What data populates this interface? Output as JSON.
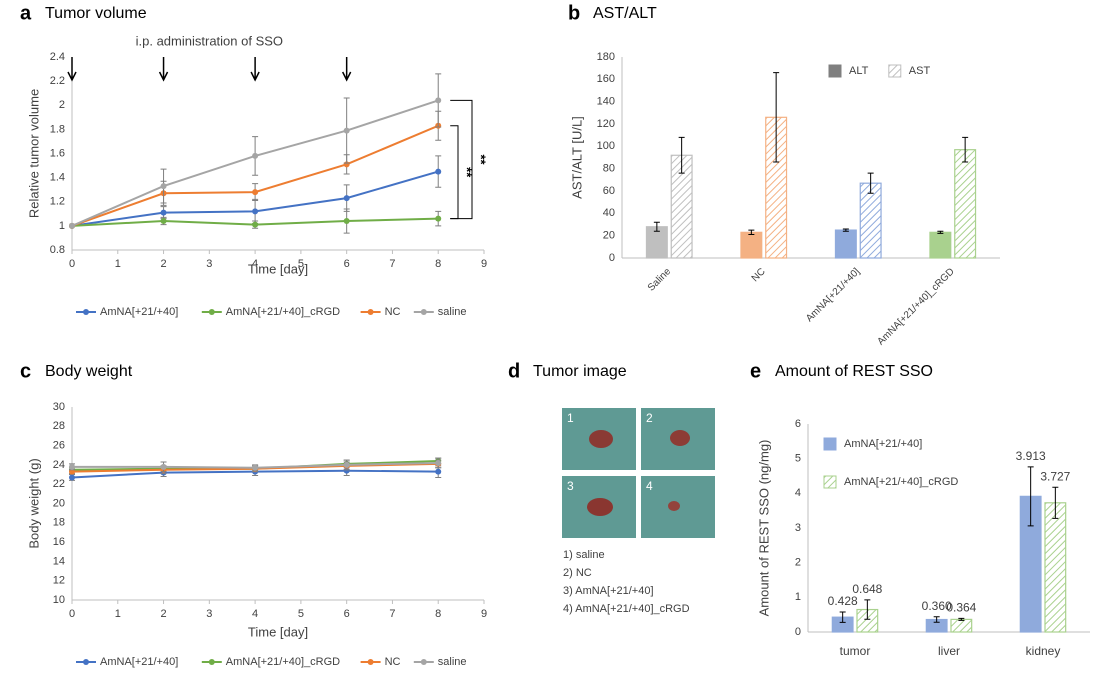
{
  "chart_data": [
    {
      "type": "line",
      "panel": "a",
      "title": "Tumor volume",
      "annotation": "i.p. administration of SSO",
      "arrows": [
        0,
        2,
        4,
        6
      ],
      "significance": [
        "**",
        "**"
      ],
      "xlabel": "Time [day]",
      "ylabel": "Relative tumor volume",
      "x": [
        0,
        2,
        4,
        6,
        8
      ],
      "xlim": [
        0,
        9
      ],
      "xticks": [
        0,
        1,
        2,
        3,
        4,
        5,
        6,
        7,
        8,
        9
      ],
      "ylim": [
        0.8,
        2.4
      ],
      "yticks": [
        0.8,
        1,
        1.2,
        1.4,
        1.6,
        1.8,
        2,
        2.2,
        2.4
      ],
      "grid": false,
      "legend": "bottom",
      "series": [
        {
          "name": "AmNA[+21/+40]",
          "color": "#4472c4",
          "values": [
            1,
            1.11,
            1.12,
            1.23,
            1.45
          ],
          "errors": [
            0,
            0.05,
            0.1,
            0.11,
            0.13
          ]
        },
        {
          "name": "AmNA[+21/+40]_cRGD",
          "color": "#70ad47",
          "values": [
            1,
            1.04,
            1.01,
            1.04,
            1.06
          ],
          "errors": [
            0,
            0.03,
            0.03,
            0.1,
            0.06
          ]
        },
        {
          "name": "NC",
          "color": "#ed7d31",
          "values": [
            1,
            1.27,
            1.28,
            1.51,
            1.83
          ],
          "errors": [
            0,
            0.1,
            0.07,
            0.08,
            0.12
          ]
        },
        {
          "name": "saline",
          "color": "#a5a5a5",
          "values": [
            1,
            1.33,
            1.58,
            1.79,
            2.04
          ],
          "errors": [
            0,
            0.14,
            0.16,
            0.27,
            0.22
          ]
        }
      ]
    },
    {
      "type": "bar",
      "panel": "b",
      "title": "AST/ALT",
      "ylabel": "AST/ALT [U/L]",
      "categories": [
        "Saline",
        "NC",
        "AmNA[+21/+40]",
        "AmNA[+21/+40]_cRGD"
      ],
      "rotate_labels": true,
      "category_colors": [
        "#bfbfbf",
        "#f4b183",
        "#8faadc",
        "#a9d18e"
      ],
      "ylim": [
        0,
        180
      ],
      "yticks": [
        0,
        20,
        40,
        60,
        80,
        100,
        120,
        140,
        160,
        180
      ],
      "grid": false,
      "legend": "top-right",
      "series": [
        {
          "name": "ALT",
          "color": "#7f7f7f",
          "hatch": false,
          "values": [
            28,
            23,
            25,
            23
          ],
          "errors": [
            4,
            2,
            1,
            1
          ]
        },
        {
          "name": "AST",
          "color": "#bfbfbf",
          "hatch": true,
          "values": [
            92,
            126,
            67,
            97
          ],
          "errors": [
            16,
            40,
            9,
            11
          ]
        }
      ]
    },
    {
      "type": "line",
      "panel": "c",
      "title": "Body weight",
      "xlabel": "Time [day]",
      "ylabel": "Body weight (g)",
      "x": [
        0,
        2,
        4,
        6,
        8
      ],
      "xlim": [
        0,
        9
      ],
      "xticks": [
        0,
        1,
        2,
        3,
        4,
        5,
        6,
        7,
        8,
        9
      ],
      "ylim": [
        10,
        30
      ],
      "yticks": [
        10,
        12,
        14,
        16,
        18,
        20,
        22,
        24,
        26,
        28,
        30
      ],
      "grid": false,
      "legend": "bottom",
      "series": [
        {
          "name": "AmNA[+21/+40]",
          "color": "#4472c4",
          "values": [
            22.7,
            23.2,
            23.3,
            23.4,
            23.3
          ],
          "errors": [
            0.3,
            0.4,
            0.4,
            0.5,
            0.6
          ]
        },
        {
          "name": "AmNA[+21/+40]_cRGD",
          "color": "#70ad47",
          "values": [
            23.5,
            23.6,
            23.6,
            24.1,
            24.4
          ],
          "errors": [
            0.2,
            0.3,
            0.3,
            0.4,
            0.3
          ]
        },
        {
          "name": "NC",
          "color": "#ed7d31",
          "values": [
            23.3,
            23.5,
            23.6,
            23.9,
            24.1
          ],
          "errors": [
            0.2,
            0.4,
            0.3,
            0.4,
            0.4
          ]
        },
        {
          "name": "saline",
          "color": "#a5a5a5",
          "values": [
            23.8,
            23.8,
            23.7,
            24,
            24.2
          ],
          "errors": [
            0.3,
            0.5,
            0.3,
            0.5,
            0.5
          ]
        }
      ]
    },
    {
      "type": "bar",
      "panel": "e",
      "title": "Amount of REST SSO",
      "ylabel": "Amount of REST SSO (ng/mg)",
      "categories": [
        "tumor",
        "liver",
        "kidney"
      ],
      "ylim": [
        0,
        6
      ],
      "yticks": [
        0,
        1,
        2,
        3,
        4,
        5,
        6
      ],
      "grid": false,
      "legend": "top-left",
      "series": [
        {
          "name": "AmNA[+21/+40]",
          "color": "#8faadc",
          "hatch": false,
          "values": [
            0.428,
            0.36,
            3.913
          ],
          "value_labels": [
            "0.428",
            "0.360",
            "3.913"
          ],
          "errors": [
            0.15,
            0.08,
            0.85
          ]
        },
        {
          "name": "AmNA[+21/+40]_cRGD",
          "color": "#a9d18e",
          "hatch": true,
          "values": [
            0.648,
            0.364,
            3.727
          ],
          "value_labels": [
            "0.648",
            "0.364",
            "3.727"
          ],
          "errors": [
            0.28,
            0.03,
            0.45
          ]
        }
      ]
    }
  ],
  "tumor_image": {
    "panel": "d",
    "title": "Tumor image",
    "labels": [
      "1",
      "2",
      "3",
      "4"
    ],
    "legend": [
      "1) saline",
      "2) NC",
      "3) AmNA[+21/+40]",
      "4) AmNA[+21/+40]_cRGD"
    ]
  }
}
